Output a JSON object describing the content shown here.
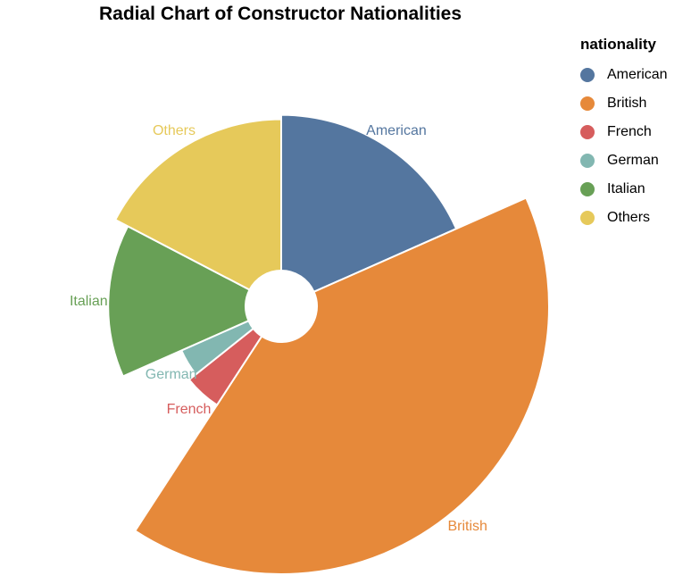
{
  "chart_data": {
    "type": "pie",
    "variant": "radial",
    "title": "Radial Chart of Constructor Nationalities",
    "legend_title": "nationality",
    "legend_position": "right",
    "start_angle_deg": 0,
    "slices": [
      {
        "label": "American",
        "value": 18,
        "color": "#54769f",
        "label_color": "#54769f"
      },
      {
        "label": "British",
        "value": 40,
        "color": "#e6893a",
        "label_color": "#e6893a"
      },
      {
        "label": "French",
        "value": 5,
        "color": "#d65d5d",
        "label_color": "#d65d5d"
      },
      {
        "label": "German",
        "value": 4,
        "color": "#82b7b1",
        "label_color": "#82b7b1"
      },
      {
        "label": "Italian",
        "value": 14,
        "color": "#68a056",
        "label_color": "#68a056"
      },
      {
        "label": "Others",
        "value": 17,
        "color": "#e6c95a",
        "label_color": "#e6c95a"
      }
    ]
  }
}
